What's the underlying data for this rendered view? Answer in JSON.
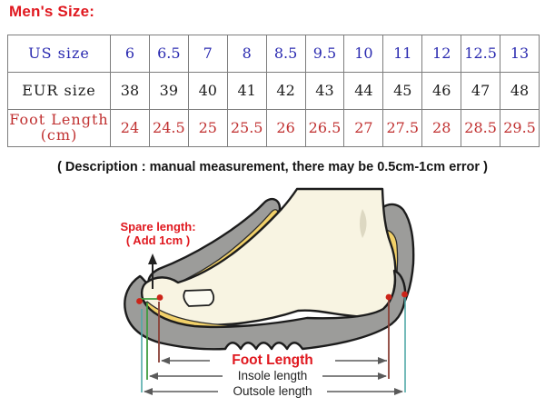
{
  "title": "Men's Size:",
  "table": {
    "rows": [
      {
        "label": "US size",
        "label2": "",
        "values": [
          "6",
          "6.5",
          "7",
          "8",
          "8.5",
          "9.5",
          "10",
          "11",
          "12",
          "12.5",
          "13"
        ]
      },
      {
        "label": "EUR size",
        "label2": "",
        "values": [
          "38",
          "39",
          "40",
          "41",
          "42",
          "43",
          "44",
          "45",
          "46",
          "47",
          "48"
        ]
      },
      {
        "label": "Foot Length",
        "label2": "(cm)",
        "values": [
          "24",
          "24.5",
          "25",
          "25.5",
          "26",
          "26.5",
          "27",
          "27.5",
          "28",
          "28.5",
          "29.5"
        ]
      }
    ]
  },
  "note": "( Description :  manual measurement, there may be 0.5cm-1cm error )",
  "diagram": {
    "spare_length": {
      "line1": "Spare length:",
      "line2": "( Add 1cm )"
    },
    "measurements": [
      {
        "label": "Foot Length"
      },
      {
        "label": "Insole length"
      },
      {
        "label": "Outsole length"
      }
    ]
  },
  "colors": {
    "accent_red": "#e0181f",
    "table_blue": "#2a2ab0",
    "table_black": "#1c1c1c",
    "table_red": "#c03030",
    "note_black": "#151515",
    "border_gray": "#7d7d7d",
    "shoe_gray": "#9c9c9a",
    "lining_yellow": "#f2d169",
    "foot_cream": "#f8f4e2",
    "outline_black": "#1c1c1c",
    "teal": "#52aaa8",
    "green_line": "#3f9c3f",
    "dark_red_line": "#8a4038",
    "dot_red": "#cc2418",
    "dim_line_gray": "#5a5a5a"
  }
}
